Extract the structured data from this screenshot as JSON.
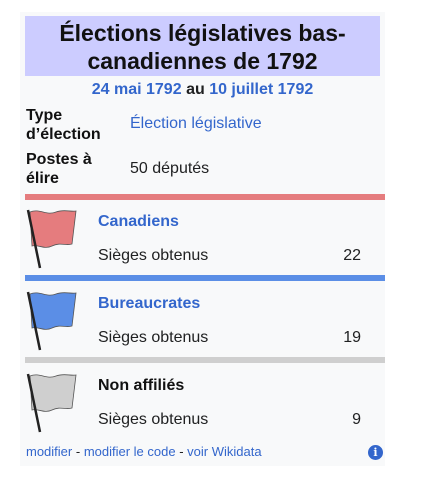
{
  "title": "Élections législatives bas-canadiennes de 1792",
  "dates": {
    "start": "24 mai 1792",
    "separator": "au",
    "end": "10 juillet 1792"
  },
  "rows": [
    {
      "label": "Type d’élection",
      "value": "Élection législative"
    },
    {
      "label": "Postes à élire",
      "value": "50 députés"
    }
  ],
  "parties": [
    {
      "name": "Canadiens",
      "seats_label": "Sièges obtenus",
      "seats": "22",
      "color": "#e57c7e"
    },
    {
      "name": "Bureaucrates",
      "seats_label": "Sièges obtenus",
      "seats": "19",
      "color": "#5b8ee6"
    },
    {
      "name": "Non affiliés",
      "seats_label": "Sièges obtenus",
      "seats": "9",
      "color": "#cfcfcf"
    }
  ],
  "footer": {
    "modify": "modifier",
    "sep1": " - ",
    "modify_code": "modifier le code",
    "sep2": " - ",
    "wikidata": "voir Wikidata"
  },
  "icons": {
    "info": "info-icon",
    "flag": "flag-icon"
  }
}
